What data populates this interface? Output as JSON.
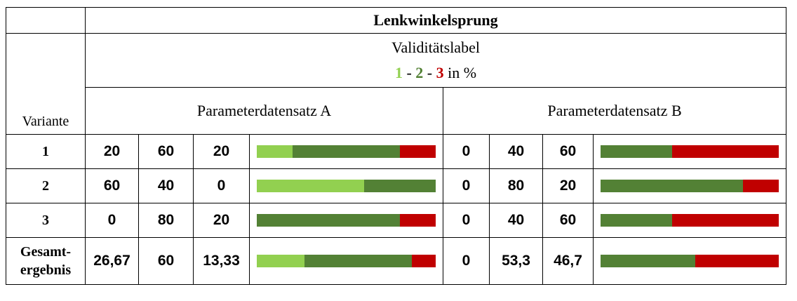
{
  "title": "Lenkwinkelsprung",
  "validity_label": {
    "text": "Validitätslabel",
    "n1": "1",
    "sep1": " - ",
    "n2": "2",
    "sep2": " - ",
    "n3": "3",
    "suffix": " in %"
  },
  "variant_header": "Variante",
  "parameter_sets": [
    "Parameterdatensatz A",
    "Parameterdatensatz B"
  ],
  "colors": {
    "label1": "#92d050",
    "label2": "#538135",
    "label3": "#c00000"
  },
  "rows": [
    {
      "label": "1",
      "a": {
        "v1": "20",
        "v2": "60",
        "v3": "20",
        "f": [
          20,
          60,
          20
        ]
      },
      "b": {
        "v1": "0",
        "v2": "40",
        "v3": "60",
        "f": [
          0,
          40,
          60
        ]
      }
    },
    {
      "label": "2",
      "a": {
        "v1": "60",
        "v2": "40",
        "v3": "0",
        "f": [
          60,
          40,
          0
        ]
      },
      "b": {
        "v1": "0",
        "v2": "80",
        "v3": "20",
        "f": [
          0,
          80,
          20
        ]
      }
    },
    {
      "label": "3",
      "a": {
        "v1": "0",
        "v2": "80",
        "v3": "20",
        "f": [
          0,
          80,
          20
        ]
      },
      "b": {
        "v1": "0",
        "v2": "40",
        "v3": "60",
        "f": [
          0,
          40,
          60
        ]
      }
    },
    {
      "label_line1": "Gesamt-",
      "label_line2": "ergebnis",
      "a": {
        "v1": "26,67",
        "v2": "60",
        "v3": "13,33",
        "f": [
          26.67,
          60,
          13.33
        ]
      },
      "b": {
        "v1": "0",
        "v2": "53,3",
        "v3": "46,7",
        "f": [
          0,
          53.3,
          46.7
        ]
      }
    }
  ]
}
